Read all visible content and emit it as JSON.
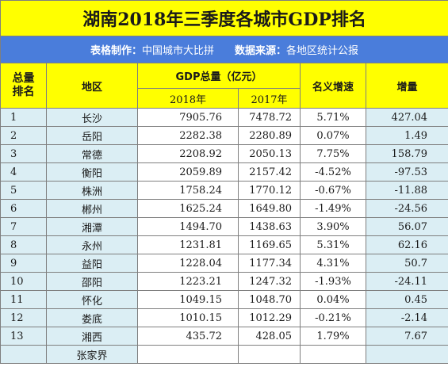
{
  "title": "湖南2018年三季度各城市GDP排名",
  "info": {
    "made_by_label": "表格制作：",
    "made_by_value": "中国城市大比拼",
    "source_label": "数据来源：",
    "source_value": "各地区统计公报"
  },
  "headers": {
    "rank_line1": "总量",
    "rank_line2": "排名",
    "region": "地区",
    "gdp_total": "GDP总量（亿元）",
    "year_2018": "2018年",
    "year_2017": "2017年",
    "nominal_growth": "名义增速",
    "increment": "增量"
  },
  "rows": [
    {
      "rank": "1",
      "city": "长沙",
      "gdp2018": "7905.76",
      "gdp2017": "7478.72",
      "growth": "5.71%",
      "increase": "427.04"
    },
    {
      "rank": "2",
      "city": "岳阳",
      "gdp2018": "2282.38",
      "gdp2017": "2280.89",
      "growth": "0.07%",
      "increase": "1.49"
    },
    {
      "rank": "3",
      "city": "常德",
      "gdp2018": "2208.92",
      "gdp2017": "2050.13",
      "growth": "7.75%",
      "increase": "158.79"
    },
    {
      "rank": "4",
      "city": "衡阳",
      "gdp2018": "2059.89",
      "gdp2017": "2157.42",
      "growth": "-4.52%",
      "increase": "-97.53"
    },
    {
      "rank": "5",
      "city": "株洲",
      "gdp2018": "1758.24",
      "gdp2017": "1770.12",
      "growth": "-0.67%",
      "increase": "-11.88"
    },
    {
      "rank": "6",
      "city": "郴州",
      "gdp2018": "1625.24",
      "gdp2017": "1649.80",
      "growth": "-1.49%",
      "increase": "-24.56"
    },
    {
      "rank": "7",
      "city": "湘潭",
      "gdp2018": "1494.70",
      "gdp2017": "1438.63",
      "growth": "3.90%",
      "increase": "56.07"
    },
    {
      "rank": "8",
      "city": "永州",
      "gdp2018": "1231.81",
      "gdp2017": "1169.65",
      "growth": "5.31%",
      "increase": "62.16"
    },
    {
      "rank": "9",
      "city": "益阳",
      "gdp2018": "1228.04",
      "gdp2017": "1177.34",
      "growth": "4.31%",
      "increase": "50.7"
    },
    {
      "rank": "10",
      "city": "邵阳",
      "gdp2018": "1223.21",
      "gdp2017": "1247.32",
      "growth": "-1.93%",
      "increase": "-24.11"
    },
    {
      "rank": "11",
      "city": "怀化",
      "gdp2018": "1049.15",
      "gdp2017": "1048.70",
      "growth": "0.04%",
      "increase": "0.45"
    },
    {
      "rank": "12",
      "city": "娄底",
      "gdp2018": "1010.15",
      "gdp2017": "1012.29",
      "growth": "-0.21%",
      "increase": "-2.14"
    },
    {
      "rank": "13",
      "city": "湘西",
      "gdp2018": "435.72",
      "gdp2017": "428.05",
      "growth": "1.79%",
      "increase": "7.67"
    },
    {
      "rank": "",
      "city": "张家界",
      "gdp2018": "",
      "gdp2017": "",
      "growth": "",
      "increase": ""
    }
  ]
}
